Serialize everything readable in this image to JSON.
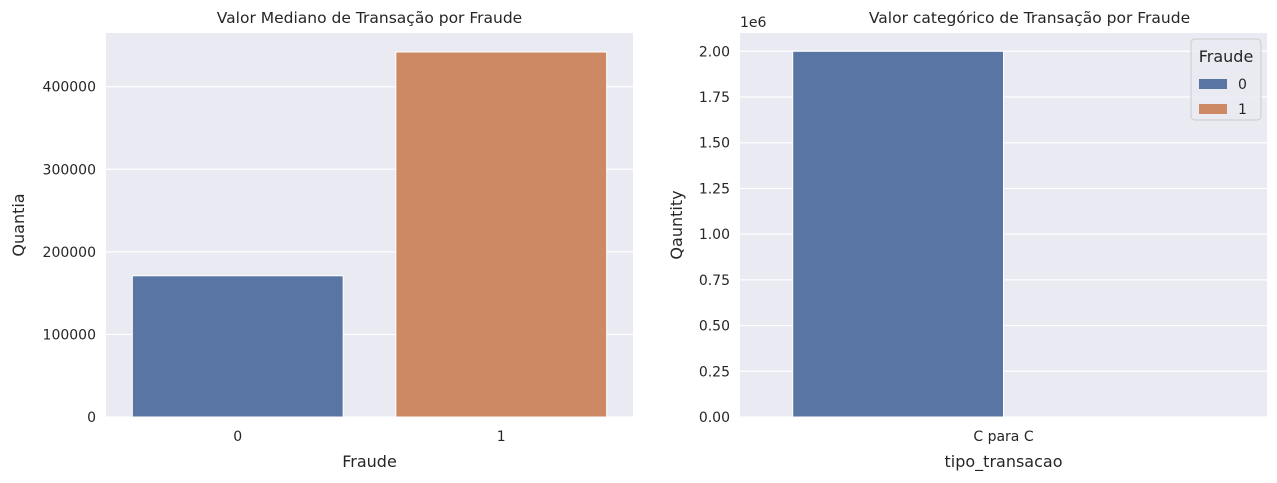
{
  "colors": {
    "background": "#eaeaf2",
    "grid": "#ffffff",
    "series_0": "#5975a4",
    "series_1": "#cc8963"
  },
  "chart_data": [
    {
      "type": "bar",
      "title": "Valor Mediano de Transação por Fraude",
      "xlabel": "Fraude",
      "ylabel": "Quantia",
      "categories": [
        "0",
        "1"
      ],
      "values": [
        171000,
        442000
      ],
      "bar_colors": [
        "#5975a4",
        "#cc8963"
      ],
      "ylim": [
        0,
        465000
      ],
      "yticks": [
        0,
        100000,
        200000,
        300000,
        400000
      ],
      "ytick_labels": [
        "0",
        "100000",
        "200000",
        "300000",
        "400000"
      ],
      "grid": true
    },
    {
      "type": "bar",
      "title": "Valor categórico de Transação por Fraude",
      "xlabel": "tipo_transacao",
      "ylabel": "Qauntity",
      "offset_text": "1e6",
      "categories": [
        "C para C"
      ],
      "series": [
        {
          "name": "0",
          "values": [
            2.0
          ]
        },
        {
          "name": "1",
          "values": [
            0.0
          ]
        }
      ],
      "series_colors": [
        "#5975a4",
        "#cc8963"
      ],
      "ylim": [
        0,
        2.1
      ],
      "yticks": [
        0,
        0.25,
        0.5,
        0.75,
        1.0,
        1.25,
        1.5,
        1.75,
        2.0
      ],
      "ytick_labels": [
        "0.00",
        "0.25",
        "0.50",
        "0.75",
        "1.00",
        "1.25",
        "1.50",
        "1.75",
        "2.00"
      ],
      "legend": {
        "title": "Fraude",
        "entries": [
          "0",
          "1"
        ],
        "placement": "top-right"
      },
      "grid": true
    }
  ]
}
